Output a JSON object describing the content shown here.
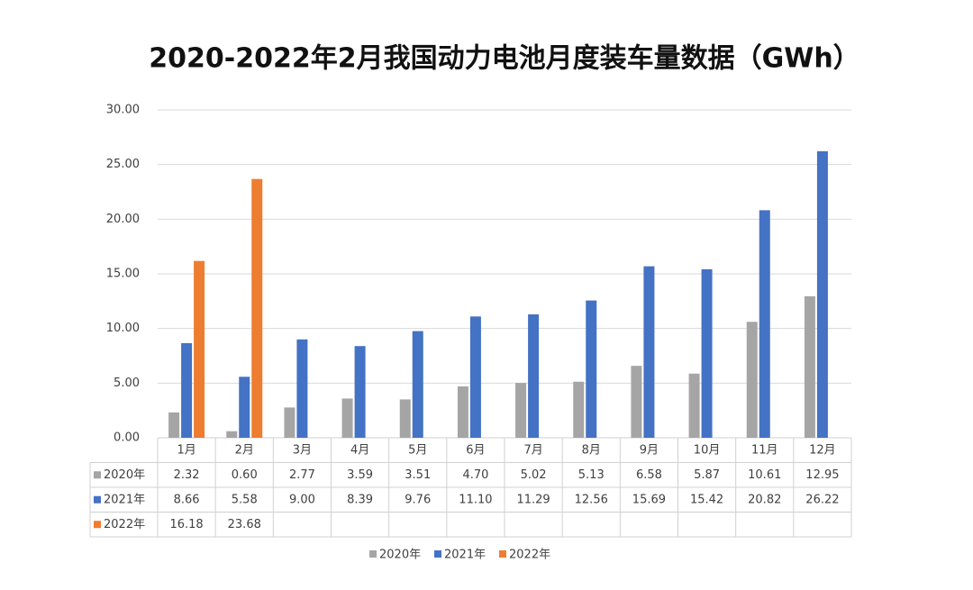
{
  "chart_data": {
    "type": "bar",
    "title": "2020-2022年2月我国动力电池月度装车量数据（GWh）",
    "categories": [
      "1月",
      "2月",
      "3月",
      "4月",
      "5月",
      "6月",
      "7月",
      "8月",
      "9月",
      "10月",
      "11月",
      "12月"
    ],
    "series": [
      {
        "name": "2020年",
        "color": "#a5a5a5",
        "values": [
          2.32,
          0.6,
          2.77,
          3.59,
          3.51,
          4.7,
          5.02,
          5.13,
          6.58,
          5.87,
          10.61,
          12.95
        ],
        "value_labels": [
          "2.32",
          "0.60",
          "2.77",
          "3.59",
          "3.51",
          "4.70",
          "5.02",
          "5.13",
          "6.58",
          "5.87",
          "10.61",
          "12.95"
        ]
      },
      {
        "name": "2021年",
        "color": "#4472c4",
        "values": [
          8.66,
          5.58,
          9,
          8.39,
          9.76,
          11.1,
          11.29,
          12.56,
          15.69,
          15.42,
          20.82,
          26.22
        ],
        "value_labels": [
          "8.66",
          "5.58",
          "9.00",
          "8.39",
          "9.76",
          "11.10",
          "11.29",
          "12.56",
          "15.69",
          "15.42",
          "20.82",
          "26.22"
        ]
      },
      {
        "name": "2022年",
        "color": "#ed7d31",
        "values": [
          16.18,
          23.68,
          null,
          null,
          null,
          null,
          null,
          null,
          null,
          null,
          null,
          null
        ],
        "value_labels": [
          "16.18",
          "23.68",
          null,
          null,
          null,
          null,
          null,
          null,
          null,
          null,
          null,
          null
        ]
      }
    ],
    "ylim": [
      0,
      30
    ],
    "yticks": [
      {
        "value": 0,
        "label": "0.00"
      },
      {
        "value": 5,
        "label": "5.00"
      },
      {
        "value": 10,
        "label": "10.00"
      },
      {
        "value": 15,
        "label": "15.00"
      },
      {
        "value": 20,
        "label": "20.00"
      },
      {
        "value": 25,
        "label": "25.00"
      },
      {
        "value": 30,
        "label": "30.00"
      }
    ],
    "grid": true
  }
}
